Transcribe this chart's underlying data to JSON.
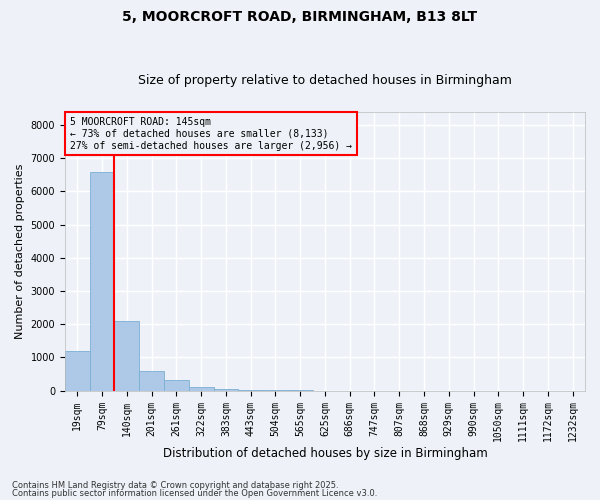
{
  "title1": "5, MOORCROFT ROAD, BIRMINGHAM, B13 8LT",
  "title2": "Size of property relative to detached houses in Birmingham",
  "xlabel": "Distribution of detached houses by size in Birmingham",
  "ylabel": "Number of detached properties",
  "categories": [
    "19sqm",
    "79sqm",
    "140sqm",
    "201sqm",
    "261sqm",
    "322sqm",
    "383sqm",
    "443sqm",
    "504sqm",
    "565sqm",
    "625sqm",
    "686sqm",
    "747sqm",
    "807sqm",
    "868sqm",
    "929sqm",
    "990sqm",
    "1050sqm",
    "1111sqm",
    "1172sqm",
    "1232sqm"
  ],
  "values": [
    1200,
    6600,
    2100,
    600,
    320,
    110,
    60,
    30,
    10,
    5,
    0,
    0,
    0,
    0,
    0,
    0,
    0,
    0,
    0,
    0,
    0
  ],
  "bar_color": "#aec9e8",
  "bar_edgecolor": "#7aafd4",
  "vline_index": 2,
  "vline_color": "red",
  "annotation_title": "5 MOORCROFT ROAD: 145sqm",
  "annotation_line1": "← 73% of detached houses are smaller (8,133)",
  "annotation_line2": "27% of semi-detached houses are larger (2,956) →",
  "annotation_box_color": "red",
  "ylim": [
    0,
    8400
  ],
  "yticks": [
    0,
    1000,
    2000,
    3000,
    4000,
    5000,
    6000,
    7000,
    8000
  ],
  "footnote1": "Contains HM Land Registry data © Crown copyright and database right 2025.",
  "footnote2": "Contains public sector information licensed under the Open Government Licence v3.0.",
  "bg_color": "#eef2f8",
  "grid_color": "#ffffff",
  "title1_fontsize": 10,
  "title2_fontsize": 9,
  "xlabel_fontsize": 8.5,
  "ylabel_fontsize": 8,
  "tick_fontsize": 7,
  "annot_fontsize": 7,
  "footnote_fontsize": 6
}
